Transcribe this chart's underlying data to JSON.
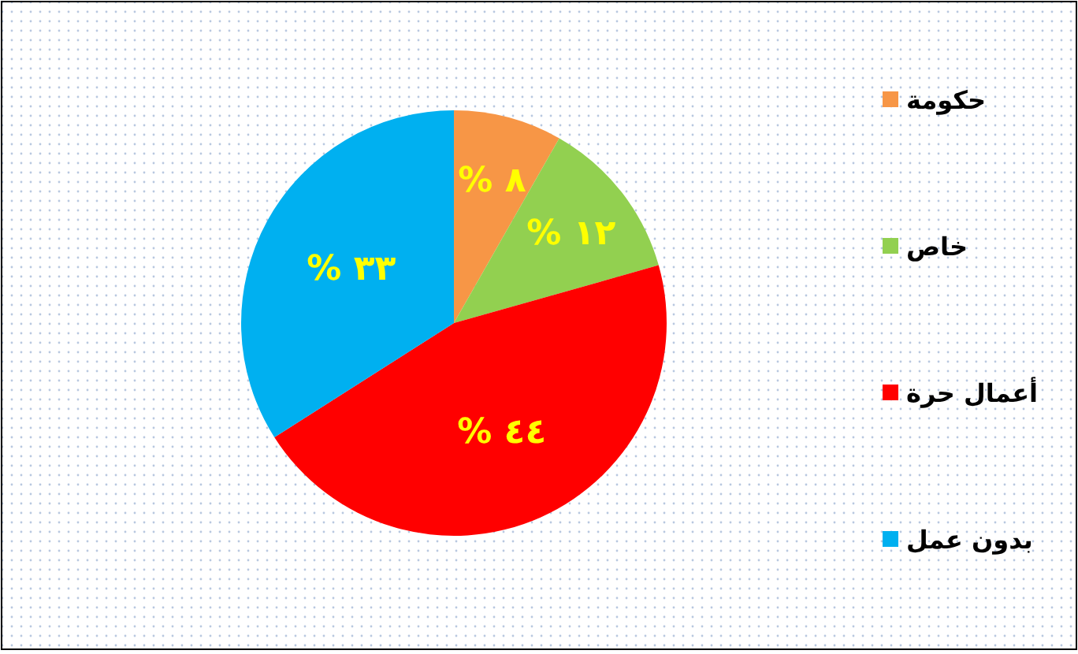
{
  "chart_data": {
    "type": "pie",
    "categories": [
      "حكومة",
      "خاص",
      "أعمال حرة",
      "بدون عمل"
    ],
    "values": [
      8,
      12,
      44,
      33
    ],
    "colors": [
      "#f79646",
      "#92d050",
      "#ff0000",
      "#00b0f0"
    ],
    "value_labels": [
      "% ٨",
      "% ١٢",
      "% ٤٤",
      "% ٣٣"
    ],
    "legend": "right"
  }
}
